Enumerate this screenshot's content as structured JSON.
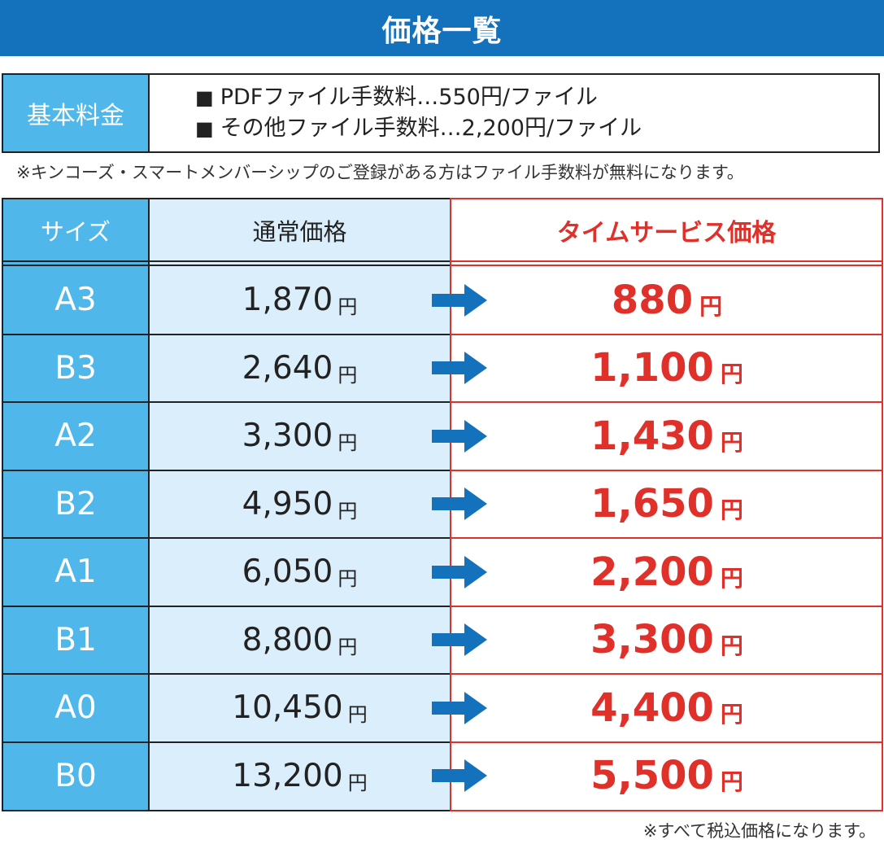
{
  "title": "価格一覧",
  "basic_fee": {
    "label": "基本料金",
    "bullet": "■",
    "items": [
      "PDFファイル手数料…550円/ファイル",
      "その他ファイル手数料…2,200円/ファイル"
    ]
  },
  "member_note": "※キンコーズ・スマートメンバーシップのご登録がある方はファイル手数料が無料になります。",
  "table": {
    "headers": {
      "size": "サイズ",
      "regular": "通常価格",
      "sale": "タイムサービス価格"
    },
    "currency": "円",
    "rows": [
      {
        "size": "A3",
        "regular": "1,870",
        "sale": "880"
      },
      {
        "size": "B3",
        "regular": "2,640",
        "sale": "1,100"
      },
      {
        "size": "A2",
        "regular": "3,300",
        "sale": "1,430"
      },
      {
        "size": "B2",
        "regular": "4,950",
        "sale": "1,650"
      },
      {
        "size": "A1",
        "regular": "6,050",
        "sale": "2,200"
      },
      {
        "size": "B1",
        "regular": "8,800",
        "sale": "3,300"
      },
      {
        "size": "A0",
        "regular": "10,450",
        "sale": "4,400"
      },
      {
        "size": "B0",
        "regular": "13,200",
        "sale": "5,500"
      }
    ]
  },
  "tax_note": "※すべて税込価格になります。",
  "colors": {
    "title_bar": "#1472bd",
    "size_column": "#4fb7ea",
    "regular_column": "#dbeefb",
    "sale_accent": "#e0302a",
    "arrow": "#1472bd"
  },
  "icons": {
    "row_arrow": "arrow-right-icon"
  }
}
